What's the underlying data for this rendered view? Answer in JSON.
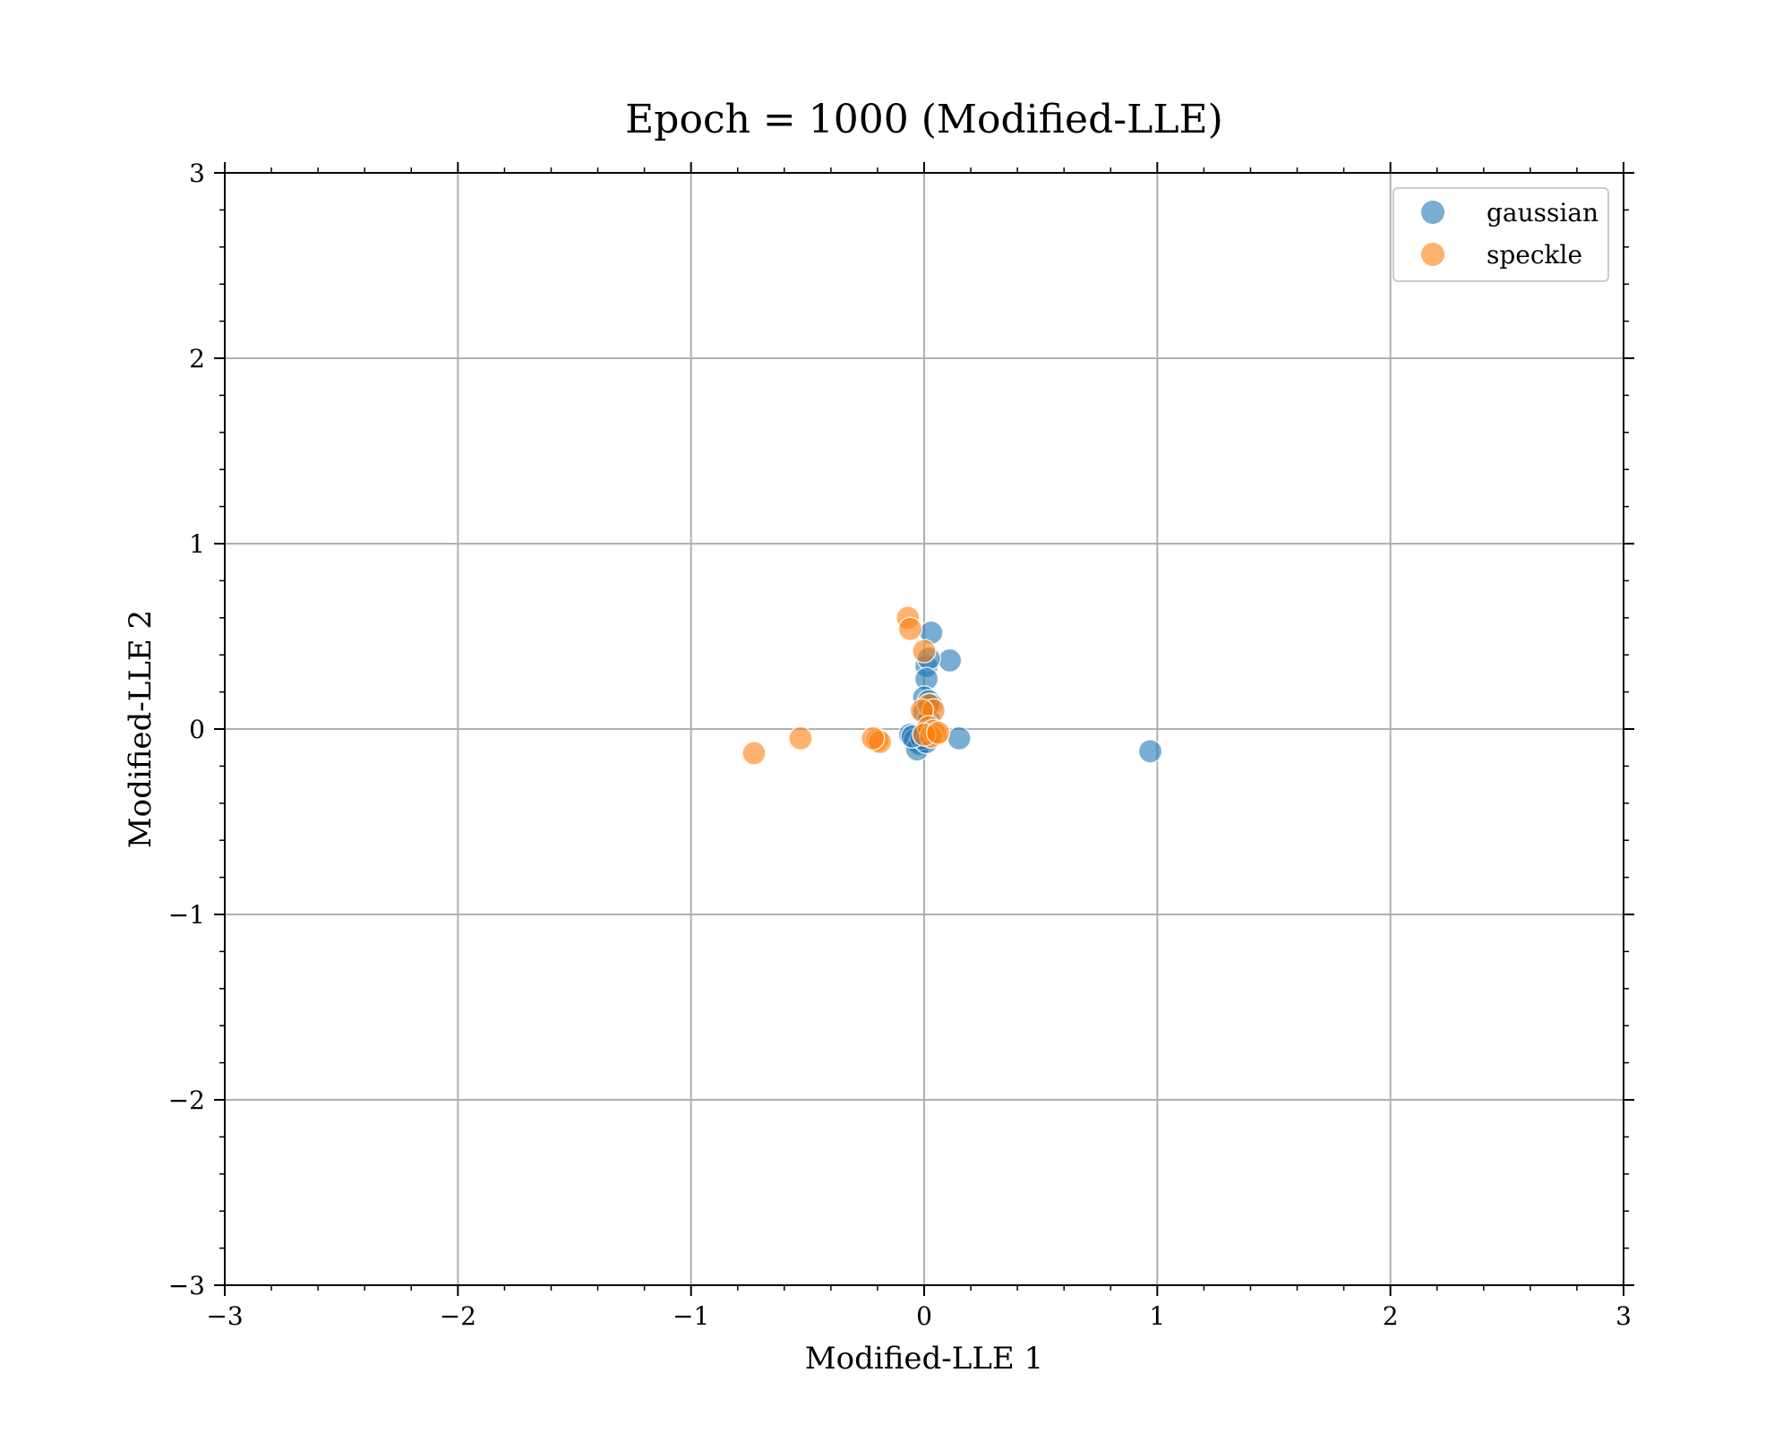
{
  "chart_data": {
    "type": "scatter",
    "title": "Epoch = 1000 (Modified-LLE)",
    "xlabel": "Modified-LLE 1",
    "ylabel": "Modified-LLE 2",
    "xlim": [
      -3,
      3
    ],
    "ylim": [
      -3,
      3
    ],
    "xticks": [
      -3,
      -2,
      -1,
      0,
      1,
      2,
      3
    ],
    "yticks": [
      -3,
      -2,
      -1,
      0,
      1,
      2,
      3
    ],
    "xtick_labels": [
      "−3",
      "−2",
      "−1",
      "0",
      "1",
      "2",
      "3"
    ],
    "ytick_labels": [
      "−3",
      "−2",
      "−1",
      "0",
      "1",
      "2",
      "3"
    ],
    "grid": true,
    "legend_position": "top-right",
    "series": [
      {
        "name": "gaussian",
        "color": "#1f77b4",
        "points": [
          [
            0.03,
            0.52
          ],
          [
            0.11,
            0.37
          ],
          [
            0.01,
            0.34
          ],
          [
            0.02,
            0.38
          ],
          [
            0.01,
            0.27
          ],
          [
            0.0,
            0.17
          ],
          [
            0.02,
            0.15
          ],
          [
            0.03,
            0.13
          ],
          [
            0.0,
            0.09
          ],
          [
            0.02,
            0.05
          ],
          [
            0.15,
            -0.05
          ],
          [
            0.97,
            -0.12
          ],
          [
            -0.06,
            -0.03
          ],
          [
            -0.04,
            -0.06
          ],
          [
            -0.02,
            -0.08
          ],
          [
            -0.03,
            -0.11
          ],
          [
            -0.01,
            -0.05
          ],
          [
            0.0,
            -0.02
          ],
          [
            0.01,
            -0.07
          ],
          [
            -0.05,
            -0.04
          ]
        ]
      },
      {
        "name": "speckle",
        "color": "#ff7f0e",
        "points": [
          [
            -0.07,
            0.6
          ],
          [
            -0.06,
            0.54
          ],
          [
            0.0,
            0.42
          ],
          [
            0.02,
            0.13
          ],
          [
            0.04,
            0.1
          ],
          [
            -0.01,
            0.1
          ],
          [
            0.02,
            0.01
          ],
          [
            0.04,
            -0.01
          ],
          [
            0.05,
            -0.03
          ],
          [
            0.03,
            -0.04
          ],
          [
            0.0,
            -0.03
          ],
          [
            0.06,
            -0.02
          ],
          [
            -0.2,
            -0.06
          ],
          [
            -0.19,
            -0.07
          ],
          [
            -0.22,
            -0.05
          ],
          [
            -0.53,
            -0.05
          ],
          [
            -0.73,
            -0.13
          ]
        ]
      }
    ]
  }
}
